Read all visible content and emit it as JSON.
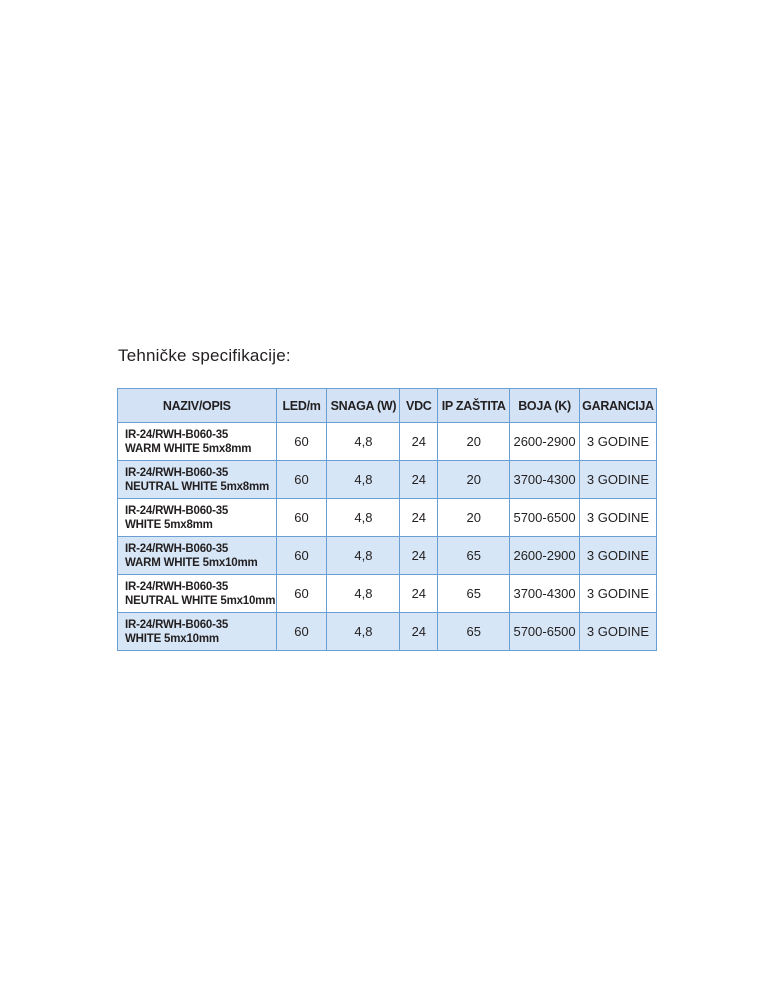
{
  "title": "Tehničke specifikacije:",
  "table": {
    "headers": [
      "NAZIV/OPIS",
      "LED/m",
      "SNAGA (W)",
      "VDC",
      "IP ZAŠTITA",
      "BOJA (K)",
      "GARANCIJA"
    ],
    "rows": [
      {
        "code": "IR-24/RWH-B060-35",
        "desc": "WARM WHITE 5mx8mm",
        "led": "60",
        "power": "4,8",
        "vdc": "24",
        "ip": "20",
        "color": "2600-2900",
        "warranty": "3 GODINE"
      },
      {
        "code": "IR-24/RWH-B060-35",
        "desc": "NEUTRAL WHITE 5mx8mm",
        "led": "60",
        "power": "4,8",
        "vdc": "24",
        "ip": "20",
        "color": "3700-4300",
        "warranty": "3 GODINE"
      },
      {
        "code": "IR-24/RWH-B060-35",
        "desc": "WHITE 5mx8mm",
        "led": "60",
        "power": "4,8",
        "vdc": "24",
        "ip": "20",
        "color": "5700-6500",
        "warranty": "3 GODINE"
      },
      {
        "code": "IR-24/RWH-B060-35",
        "desc": "WARM WHITE 5mx10mm",
        "led": "60",
        "power": "4,8",
        "vdc": "24",
        "ip": "65",
        "color": "2600-2900",
        "warranty": "3 GODINE"
      },
      {
        "code": "IR-24/RWH-B060-35",
        "desc": "NEUTRAL WHITE 5mx10mm",
        "led": "60",
        "power": "4,8",
        "vdc": "24",
        "ip": "65",
        "color": "3700-4300",
        "warranty": "3 GODINE"
      },
      {
        "code": "IR-24/RWH-B060-35",
        "desc": "WHITE 5mx10mm",
        "led": "60",
        "power": "4,8",
        "vdc": "24",
        "ip": "65",
        "color": "5700-6500",
        "warranty": "3 GODINE"
      }
    ]
  },
  "colors": {
    "header_bg": "#d3e3f5",
    "alt_row_bg": "#d6e6f6",
    "border": "#6a9fd4"
  }
}
